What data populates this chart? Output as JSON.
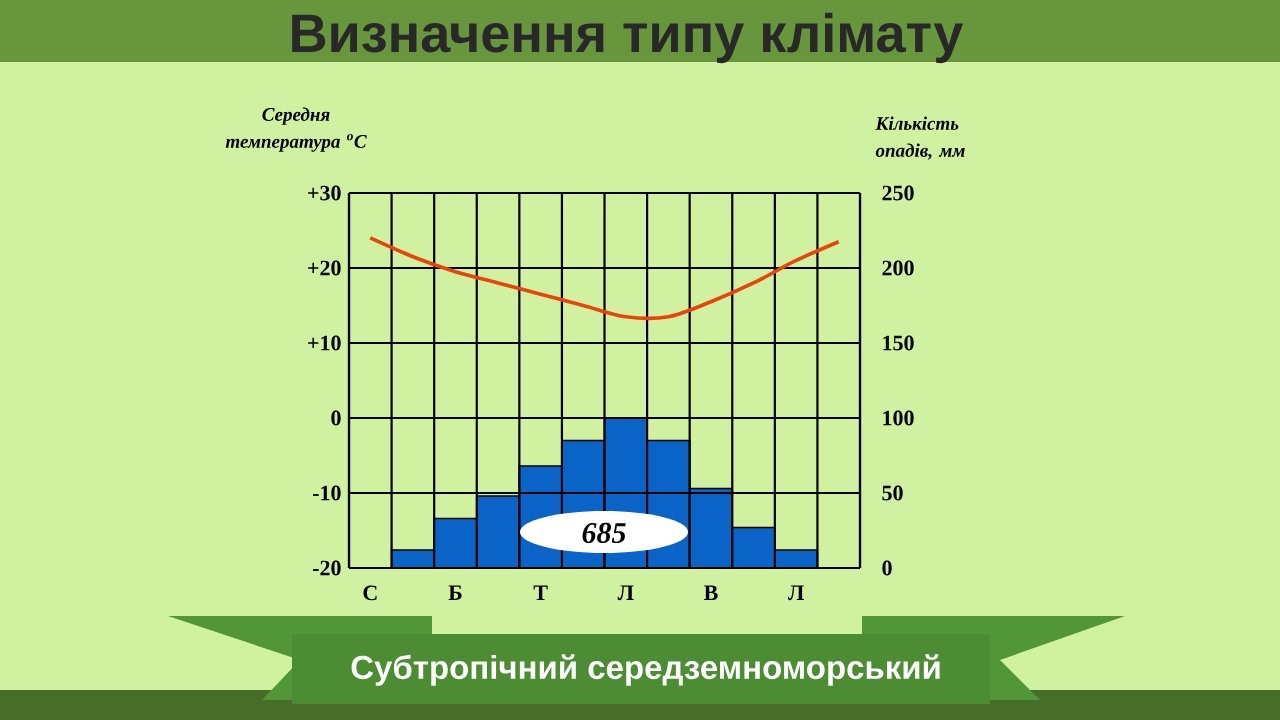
{
  "chart_data": {
    "type": "bar",
    "title": "Визначення типу клімату",
    "subtitle": "Субтропічний середземноморський",
    "ylabel": "Середня температура $^{o}$С",
    "y2label": "Кількість опадів, мм",
    "annotations": [
      "685"
    ],
    "categories": [
      "С",
      null,
      "Б",
      null,
      "Т",
      null,
      "Л",
      null,
      "В",
      null,
      "Л",
      null
    ],
    "series": [
      {
        "axis": "y2",
        "color": "#0a64c8",
        "values": [
          null,
          12,
          33,
          48,
          68,
          85,
          100,
          85,
          53,
          27,
          12,
          null
        ]
      },
      {
        "type": "line",
        "color": "#e8440c",
        "values": [
          24,
          21.5,
          19.5,
          18,
          16.5,
          15,
          13.5,
          13.5,
          15.5,
          18,
          21,
          23.5
        ]
      }
    ],
    "ylim": [
      -20,
      30
    ],
    "yticks": [
      {
        "value": 30,
        "label": "+30"
      },
      {
        "value": 20,
        "label": "+20"
      },
      {
        "value": 10,
        "label": "+10"
      },
      0,
      -10,
      -20
    ],
    "y2lim": [
      0,
      250
    ],
    "y2ticks": [
      0,
      50,
      100,
      150,
      200,
      250
    ],
    "grid": true
  }
}
